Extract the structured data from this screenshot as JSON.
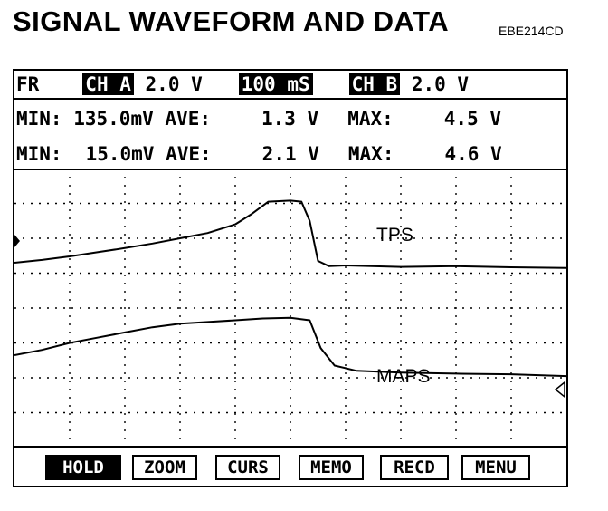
{
  "title": "SIGNAL WAVEFORM AND DATA",
  "code": "EBE214CD",
  "header": {
    "mode": "FR",
    "ch_a_label": "CH A",
    "ch_a_scale": "2.0 V",
    "timebase": "100 mS",
    "ch_b_label": "CH B",
    "ch_b_scale": "2.0 V"
  },
  "stats": [
    {
      "min_label": "MIN:",
      "min": "135.0mV",
      "ave_label": "AVE:",
      "ave": "1.3 V",
      "max_label": "MAX:",
      "max": "4.5 V"
    },
    {
      "min_label": "MIN:",
      "min": "15.0mV",
      "ave_label": "AVE:",
      "ave": "2.1 V",
      "max_label": "MAX:",
      "max": "4.6 V"
    }
  ],
  "menu": [
    "HOLD",
    "ZOOM",
    "CURS",
    "MEMO",
    "RECD",
    "MENU"
  ],
  "chart_data": {
    "type": "line",
    "xlim": [
      0,
      10
    ],
    "ylim": [
      0,
      8
    ],
    "grid": true,
    "series": [
      {
        "name": "TPS",
        "x": [
          0,
          0.5,
          1,
          1.5,
          2,
          2.5,
          3,
          3.5,
          4,
          4.3,
          4.6,
          5.0,
          5.2,
          5.35,
          5.5,
          5.7,
          6,
          7,
          8,
          9,
          10
        ],
        "y": [
          5.3,
          5.38,
          5.48,
          5.6,
          5.72,
          5.85,
          6.0,
          6.15,
          6.4,
          6.7,
          7.05,
          7.08,
          7.05,
          6.5,
          5.35,
          5.2,
          5.22,
          5.18,
          5.2,
          5.17,
          5.15
        ]
      },
      {
        "name": "MAPS",
        "x": [
          0,
          0.5,
          1,
          1.5,
          2,
          2.5,
          3,
          3.5,
          4,
          4.5,
          5.0,
          5.35,
          5.55,
          5.8,
          6.2,
          7,
          8,
          9,
          10
        ],
        "y": [
          2.65,
          2.8,
          3.0,
          3.15,
          3.3,
          3.45,
          3.55,
          3.6,
          3.65,
          3.7,
          3.72,
          3.65,
          2.85,
          2.35,
          2.2,
          2.15,
          2.12,
          2.1,
          2.05
        ]
      }
    ]
  },
  "colors": {
    "trace": "#000000",
    "grid": "#000000",
    "background": "#ffffff"
  }
}
